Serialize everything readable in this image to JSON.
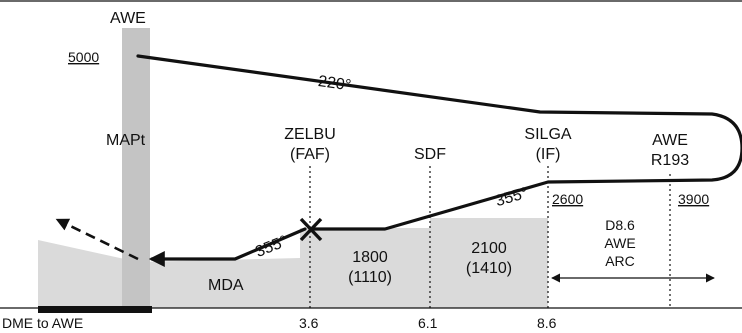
{
  "colors": {
    "terrain": "#dadada",
    "navaid_band": "#c4c4c4",
    "ink": "#111111"
  },
  "navaid": {
    "label": "AWE"
  },
  "altitudes": {
    "initial": "5000",
    "silga": "2600",
    "arc_end": "3900"
  },
  "courses": {
    "outbound": "220°",
    "final": "355°",
    "intermediate": "355°"
  },
  "fixes": {
    "mapt": "MAPt",
    "zelbu": "ZELBU",
    "zelbu_role": "(FAF)",
    "sdf": "SDF",
    "silga": "SILGA",
    "silga_role": "(IF)",
    "radial_nav": "AWE",
    "radial": "R193"
  },
  "step_altitudes": {
    "mda": "MDA",
    "seg1_alt": "1800",
    "seg1_hat": "(1110)",
    "seg2_alt": "2100",
    "seg2_hat": "(1410)"
  },
  "arc": {
    "line1": "D8.6",
    "line2": "AWE",
    "line3": "ARC"
  },
  "dme_axis": {
    "label": "DME to AWE",
    "ticks": [
      "3.6",
      "6.1",
      "8.6"
    ]
  }
}
